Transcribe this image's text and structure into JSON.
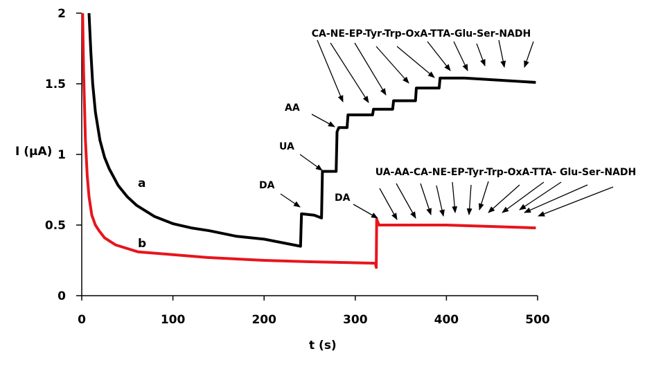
{
  "chart_data": {
    "type": "line",
    "title": "",
    "xlabel": "t (s)",
    "ylabel": "I (µA)",
    "xlim": [
      0,
      500
    ],
    "ylim": [
      0,
      2
    ],
    "xticks": [
      "0",
      "100",
      "200",
      "300",
      "400",
      "500"
    ],
    "yticks": [
      "0",
      "0.5",
      "1",
      "1.5",
      "2"
    ],
    "grid": false,
    "series": [
      {
        "name": "a",
        "color": "#000000",
        "points": [
          [
            8,
            2.0
          ],
          [
            10,
            1.72
          ],
          [
            12,
            1.5
          ],
          [
            15,
            1.3
          ],
          [
            20,
            1.1
          ],
          [
            25,
            0.98
          ],
          [
            30,
            0.9
          ],
          [
            40,
            0.78
          ],
          [
            50,
            0.7
          ],
          [
            60,
            0.64
          ],
          [
            80,
            0.56
          ],
          [
            100,
            0.51
          ],
          [
            120,
            0.48
          ],
          [
            140,
            0.46
          ],
          [
            170,
            0.42
          ],
          [
            200,
            0.4
          ],
          [
            240,
            0.35
          ],
          [
            241,
            0.58
          ],
          [
            255,
            0.57
          ],
          [
            263,
            0.55
          ],
          [
            264,
            0.88
          ],
          [
            279,
            0.88
          ],
          [
            280,
            1.16
          ],
          [
            282,
            1.19
          ],
          [
            291,
            1.19
          ],
          [
            292,
            1.28
          ],
          [
            319,
            1.28
          ],
          [
            320,
            1.32
          ],
          [
            341,
            1.32
          ],
          [
            342,
            1.38
          ],
          [
            366,
            1.38
          ],
          [
            367,
            1.47
          ],
          [
            392,
            1.47
          ],
          [
            393,
            1.54
          ],
          [
            420,
            1.54
          ],
          [
            498,
            1.51
          ]
        ]
      },
      {
        "name": "b",
        "color": "#e8141c",
        "points": [
          [
            1,
            2.0
          ],
          [
            2,
            1.6
          ],
          [
            4,
            1.1
          ],
          [
            6,
            0.85
          ],
          [
            8,
            0.7
          ],
          [
            11,
            0.57
          ],
          [
            15,
            0.5
          ],
          [
            19,
            0.46
          ],
          [
            25,
            0.41
          ],
          [
            37,
            0.36
          ],
          [
            62,
            0.31
          ],
          [
            100,
            0.29
          ],
          [
            138,
            0.27
          ],
          [
            200,
            0.25
          ],
          [
            250,
            0.24
          ],
          [
            322,
            0.23
          ],
          [
            323,
            0.2
          ],
          [
            323.5,
            0.54
          ],
          [
            326,
            0.5
          ],
          [
            400,
            0.5
          ],
          [
            498,
            0.48
          ]
        ]
      }
    ],
    "annotations": {
      "curve_a_label": "a",
      "curve_b_label": "b",
      "a_da": "DA",
      "a_ua": "UA",
      "a_aa": "AA",
      "a_sequence": "CA-NE-EP-Tyr-Trp-OxA-TTA-Glu-Ser-NADH",
      "b_da": "DA",
      "b_sequence": "UA-AA-CA-NE-EP-Tyr-Trp-OxA-TTA- Glu-Ser-NADH"
    }
  }
}
